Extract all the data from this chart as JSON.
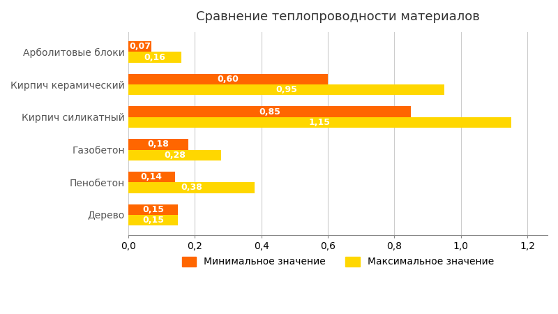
{
  "title": "Сравнение теплопроводности материалов",
  "categories": [
    "Арболитовые блоки",
    "Кирпич керамический",
    "Кирпич силикатный",
    "Газобетон",
    "Пенобетон",
    "Дерево"
  ],
  "min_values": [
    0.07,
    0.6,
    0.85,
    0.18,
    0.14,
    0.15
  ],
  "max_values": [
    0.16,
    0.95,
    1.15,
    0.28,
    0.38,
    0.15
  ],
  "min_color": "#FF6600",
  "max_color": "#FFD700",
  "bar_height": 0.33,
  "xlim": [
    0,
    1.26
  ],
  "xticks": [
    0.0,
    0.2,
    0.4,
    0.6,
    0.8,
    1.0,
    1.2
  ],
  "background_color": "#FFFFFF",
  "grid_color": "#CCCCCC",
  "label_min": "Минимальное значение",
  "label_max": "Максимальное значение",
  "title_fontsize": 13,
  "axis_label_fontsize": 10,
  "bar_label_fontsize": 9,
  "ylabel_color": "#555555",
  "title_color": "#333333"
}
